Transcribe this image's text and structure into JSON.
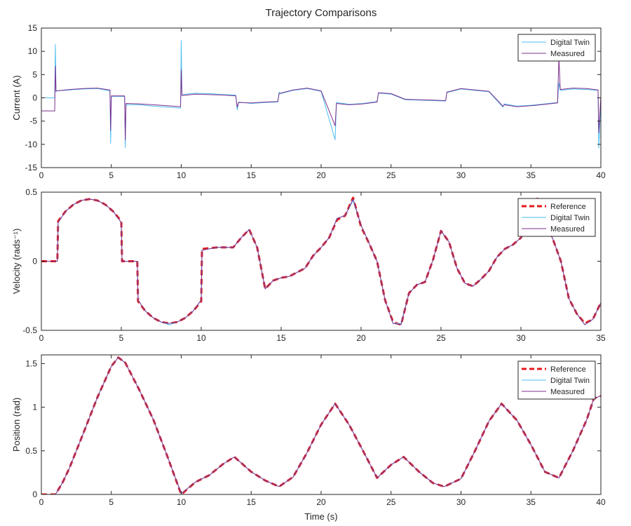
{
  "figure": {
    "title": "Trajectory Comparisons",
    "colors": {
      "reference": "#e41a1c",
      "digital_twin": "#4dbeee",
      "measured": "#7e2f8e",
      "axis": "#262626",
      "background": "#ffffff"
    }
  },
  "chart_data": [
    {
      "type": "line",
      "ylabel": "Current (A)",
      "xlabel": "",
      "xlim": [
        0,
        40
      ],
      "ylim": [
        -15,
        15
      ],
      "xticks": [
        0,
        5,
        10,
        15,
        20,
        25,
        30,
        35,
        40
      ],
      "yticks": [
        -15,
        -10,
        -5,
        0,
        5,
        10,
        15
      ],
      "legend": {
        "position": "top-right",
        "entries": [
          "Digital Twin",
          "Measured"
        ]
      },
      "series": [
        {
          "name": "Digital Twin",
          "color": "#4dbeee",
          "x": [
            0,
            0.95,
            1.0,
            1.05,
            1.1,
            2,
            3,
            4,
            4.9,
            4.95,
            5.0,
            5.05,
            5.5,
            5.95,
            6.0,
            6.05,
            7,
            8,
            9,
            9.95,
            10.0,
            10.05,
            11,
            12,
            13,
            13.9,
            14.0,
            14.1,
            15,
            16,
            16.9,
            17.0,
            17.1,
            18,
            19,
            20,
            21.0,
            21.1,
            22,
            23,
            24,
            24.1,
            25,
            26,
            27,
            28,
            28.9,
            29.0,
            29.1,
            30,
            31,
            32,
            33,
            33.1,
            34,
            35,
            36,
            36.9,
            37.0,
            37.1,
            38,
            39,
            39.8,
            39.85,
            40
          ],
          "y": [
            0,
            0,
            11.5,
            1.3,
            1.5,
            1.7,
            1.9,
            2.0,
            1.5,
            -9.8,
            0.3,
            0.3,
            0.3,
            0.3,
            -10.7,
            -1.5,
            -1.5,
            -1.8,
            -2.0,
            -2.2,
            12.3,
            0.7,
            1.0,
            0.9,
            0.7,
            0.6,
            -2.6,
            -0.9,
            -1.2,
            -1.0,
            -0.9,
            1.2,
            0.9,
            1.6,
            2.0,
            1.4,
            -9.0,
            -1.0,
            -1.4,
            -1.2,
            -0.8,
            1.0,
            0.8,
            -0.4,
            -0.5,
            -0.6,
            -0.7,
            1.3,
            1.2,
            1.9,
            1.6,
            1.3,
            -2.0,
            -1.3,
            -1.8,
            -1.6,
            -1.3,
            -1.0,
            3.2,
            1.6,
            1.9,
            1.8,
            1.6,
            -10.8,
            -0.4
          ]
        },
        {
          "name": "Measured",
          "color": "#7e2f8e",
          "x": [
            0,
            0.95,
            1.0,
            1.05,
            1.1,
            2,
            3,
            4,
            4.9,
            4.95,
            5.0,
            5.05,
            5.5,
            5.95,
            6.0,
            6.05,
            7,
            8,
            9,
            9.95,
            10.0,
            10.05,
            11,
            12,
            13,
            13.9,
            14.0,
            14.1,
            15,
            16,
            16.9,
            17.0,
            17.1,
            18,
            19,
            20,
            21.0,
            21.1,
            22,
            23,
            24,
            24.1,
            25,
            26,
            27,
            28,
            28.9,
            29.0,
            29.1,
            30,
            31,
            32,
            33,
            33.1,
            34,
            35,
            36,
            36.9,
            37.0,
            37.1,
            38,
            39,
            39.8,
            39.85,
            40
          ],
          "y": [
            -2.8,
            -2.8,
            6.8,
            1.5,
            1.5,
            1.8,
            2.0,
            2.1,
            1.7,
            -7.0,
            0.4,
            0.4,
            0.4,
            0.4,
            -9.0,
            -1.2,
            -1.3,
            -1.5,
            -1.7,
            -1.9,
            6.0,
            0.5,
            0.8,
            0.7,
            0.6,
            0.4,
            -2.0,
            -1.0,
            -1.1,
            -0.9,
            -0.8,
            0.9,
            1.0,
            1.7,
            2.1,
            1.5,
            -6.0,
            -1.2,
            -1.5,
            -1.3,
            -0.9,
            1.1,
            0.9,
            -0.3,
            -0.4,
            -0.5,
            -0.6,
            1.2,
            1.3,
            2.0,
            1.7,
            1.4,
            -1.8,
            -1.5,
            -1.9,
            -1.7,
            -1.4,
            -1.1,
            8.6,
            1.8,
            2.1,
            2.0,
            1.7,
            -7.5,
            0.4
          ]
        }
      ]
    },
    {
      "type": "line",
      "ylabel": "Velocity (rads⁻¹)",
      "xlabel": "",
      "xlim": [
        0,
        35
      ],
      "ylim": [
        -0.5,
        0.5
      ],
      "xticks": [
        0,
        5,
        10,
        15,
        20,
        25,
        30,
        35
      ],
      "yticks": [
        -0.5,
        0,
        0.5
      ],
      "legend": {
        "position": "top-right",
        "entries": [
          "Reference",
          "Digital Twin",
          "Measured"
        ]
      },
      "series": [
        {
          "name": "Reference",
          "color": "#e41a1c",
          "style": "dashed",
          "x": [
            0,
            1.0,
            1.05,
            1.5,
            2,
            2.5,
            3,
            3.5,
            4,
            4.5,
            5.0,
            5.05,
            6.0,
            6.05,
            6.5,
            7,
            7.5,
            8,
            8.5,
            9,
            9.5,
            10.0,
            10.05,
            11,
            12,
            12.5,
            13,
            13.5,
            14,
            14.5,
            15,
            15.5,
            16,
            16.5,
            17,
            17.5,
            18,
            18.5,
            19,
            19.5,
            20,
            20.5,
            21,
            21.5,
            22,
            22.5,
            23,
            23.5,
            24,
            24.5,
            25,
            25.5,
            26,
            26.5,
            27,
            27.5,
            28,
            28.5,
            29,
            29.5,
            30,
            30.5,
            31,
            31.5,
            32,
            32.5,
            33,
            33.5,
            34,
            34.5,
            35
          ],
          "y": [
            0,
            0,
            0.29,
            0.36,
            0.41,
            0.44,
            0.45,
            0.44,
            0.41,
            0.36,
            0.29,
            0,
            0,
            -0.29,
            -0.36,
            -0.41,
            -0.44,
            -0.45,
            -0.44,
            -0.41,
            -0.36,
            -0.29,
            0.09,
            0.1,
            0.1,
            0.17,
            0.23,
            0.1,
            -0.2,
            -0.14,
            -0.12,
            -0.11,
            -0.08,
            -0.05,
            0.04,
            0.1,
            0.17,
            0.3,
            0.33,
            0.46,
            0.25,
            0.13,
            0.0,
            -0.28,
            -0.44,
            -0.46,
            -0.23,
            -0.17,
            -0.15,
            0.01,
            0.22,
            0.14,
            -0.05,
            -0.16,
            -0.18,
            -0.13,
            -0.07,
            0.03,
            0.09,
            0.12,
            0.17,
            0.3,
            0.46,
            0.3,
            0.16,
            0.0,
            -0.27,
            -0.38,
            -0.45,
            -0.42,
            -0.3
          ]
        },
        {
          "name": "Digital Twin",
          "color": "#4dbeee",
          "x": [
            0,
            1.0,
            1.05,
            1.5,
            2,
            2.5,
            3,
            3.5,
            4,
            4.5,
            5.0,
            5.05,
            6.0,
            6.05,
            6.5,
            7,
            7.5,
            8,
            8.5,
            9,
            9.5,
            10.0,
            10.05,
            11,
            12,
            12.5,
            13,
            13.5,
            14,
            14.5,
            15,
            15.5,
            16,
            16.5,
            17,
            17.5,
            18,
            18.5,
            19,
            19.5,
            20,
            20.5,
            21,
            21.5,
            22,
            22.5,
            23,
            23.5,
            24,
            24.5,
            25,
            25.5,
            26,
            26.5,
            27,
            27.5,
            28,
            28.5,
            29,
            29.5,
            30,
            30.5,
            31,
            31.5,
            32,
            32.5,
            33,
            33.5,
            34,
            34.5,
            35
          ],
          "y": [
            0,
            0,
            0.28,
            0.36,
            0.41,
            0.44,
            0.45,
            0.44,
            0.41,
            0.36,
            0.28,
            0,
            0,
            -0.28,
            -0.36,
            -0.41,
            -0.44,
            -0.46,
            -0.44,
            -0.41,
            -0.36,
            -0.28,
            0.08,
            0.1,
            0.1,
            0.17,
            0.23,
            0.1,
            -0.2,
            -0.14,
            -0.12,
            -0.11,
            -0.08,
            -0.05,
            0.04,
            0.1,
            0.17,
            0.31,
            0.33,
            0.44,
            0.26,
            0.13,
            0.0,
            -0.28,
            -0.45,
            -0.45,
            -0.23,
            -0.17,
            -0.15,
            0.01,
            0.22,
            0.14,
            -0.05,
            -0.16,
            -0.18,
            -0.13,
            -0.07,
            0.03,
            0.09,
            0.12,
            0.17,
            0.3,
            0.44,
            0.3,
            0.16,
            0.0,
            -0.27,
            -0.38,
            -0.46,
            -0.42,
            -0.3
          ]
        },
        {
          "name": "Measured",
          "color": "#7e2f8e",
          "x": [
            0,
            1.0,
            1.05,
            1.5,
            2,
            2.5,
            3,
            3.5,
            4,
            4.5,
            5.0,
            5.05,
            6.0,
            6.05,
            6.5,
            7,
            7.5,
            8,
            8.5,
            9,
            9.5,
            10.0,
            10.05,
            11,
            12,
            12.5,
            13,
            13.5,
            14,
            14.5,
            15,
            15.5,
            16,
            16.5,
            17,
            17.5,
            18,
            18.5,
            19,
            19.5,
            20,
            20.5,
            21,
            21.5,
            22,
            22.5,
            23,
            23.5,
            24,
            24.5,
            25,
            25.5,
            26,
            26.5,
            27,
            27.5,
            28,
            28.5,
            29,
            29.5,
            30,
            30.5,
            31,
            31.5,
            32,
            32.5,
            33,
            33.5,
            34,
            34.5,
            35
          ],
          "y": [
            0,
            0,
            0.28,
            0.36,
            0.41,
            0.44,
            0.45,
            0.44,
            0.41,
            0.36,
            0.28,
            0,
            0,
            -0.28,
            -0.36,
            -0.41,
            -0.44,
            -0.45,
            -0.44,
            -0.41,
            -0.36,
            -0.28,
            0.08,
            0.1,
            0.1,
            0.17,
            0.23,
            0.1,
            -0.2,
            -0.14,
            -0.12,
            -0.11,
            -0.08,
            -0.05,
            0.04,
            0.1,
            0.17,
            0.31,
            0.33,
            0.45,
            0.26,
            0.13,
            0.0,
            -0.28,
            -0.45,
            -0.46,
            -0.23,
            -0.17,
            -0.15,
            0.01,
            0.22,
            0.14,
            -0.05,
            -0.16,
            -0.18,
            -0.13,
            -0.07,
            0.03,
            0.09,
            0.12,
            0.17,
            0.3,
            0.45,
            0.3,
            0.16,
            0.0,
            -0.27,
            -0.38,
            -0.46,
            -0.42,
            -0.3
          ]
        }
      ]
    },
    {
      "type": "line",
      "ylabel": "Position (rad)",
      "xlabel": "Time (s)",
      "xlim": [
        0,
        40
      ],
      "ylim": [
        0,
        1.6
      ],
      "xticks": [
        0,
        5,
        10,
        15,
        20,
        25,
        30,
        35,
        40
      ],
      "yticks": [
        0,
        0.5,
        1,
        1.5
      ],
      "legend": {
        "position": "top-right",
        "entries": [
          "Reference",
          "Digital Twin",
          "Measured"
        ]
      },
      "series": [
        {
          "name": "Reference",
          "color": "#e41a1c",
          "style": "dashed",
          "x": [
            0,
            1,
            1.5,
            2,
            3,
            4,
            5,
            5.5,
            6,
            7,
            8,
            9,
            10,
            11,
            12,
            13,
            13.8,
            15,
            16,
            17,
            18,
            19,
            20,
            21,
            22,
            23,
            24,
            25,
            25.9,
            27,
            28,
            28.8,
            30,
            31,
            32,
            32.9,
            34,
            35,
            36,
            37,
            38,
            39,
            39.5,
            40
          ],
          "y": [
            0,
            0,
            0.13,
            0.3,
            0.7,
            1.11,
            1.47,
            1.57,
            1.51,
            1.2,
            0.86,
            0.44,
            0,
            0.14,
            0.22,
            0.35,
            0.43,
            0.26,
            0.16,
            0.09,
            0.2,
            0.48,
            0.8,
            1.04,
            0.8,
            0.5,
            0.19,
            0.34,
            0.43,
            0.26,
            0.13,
            0.09,
            0.18,
            0.5,
            0.84,
            1.04,
            0.85,
            0.57,
            0.26,
            0.19,
            0.5,
            0.86,
            1.1,
            1.13
          ]
        },
        {
          "name": "Digital Twin",
          "color": "#4dbeee",
          "x": [
            0,
            1,
            1.5,
            2,
            3,
            4,
            5,
            5.5,
            6,
            7,
            8,
            9,
            10,
            11,
            12,
            13,
            13.8,
            15,
            16,
            17,
            18,
            19,
            20,
            21,
            22,
            23,
            24,
            25,
            25.9,
            27,
            28,
            28.8,
            30,
            31,
            32,
            32.9,
            34,
            35,
            36,
            37,
            38,
            39,
            39.5,
            40
          ],
          "y": [
            0,
            0,
            0.13,
            0.3,
            0.7,
            1.11,
            1.47,
            1.57,
            1.51,
            1.2,
            0.86,
            0.44,
            0.01,
            0.14,
            0.22,
            0.35,
            0.43,
            0.26,
            0.16,
            0.09,
            0.2,
            0.48,
            0.8,
            1.04,
            0.8,
            0.5,
            0.19,
            0.34,
            0.43,
            0.26,
            0.13,
            0.09,
            0.18,
            0.5,
            0.84,
            1.04,
            0.85,
            0.57,
            0.26,
            0.19,
            0.5,
            0.86,
            1.1,
            1.13
          ]
        },
        {
          "name": "Measured",
          "color": "#7e2f8e",
          "x": [
            0,
            1,
            1.5,
            2,
            3,
            4,
            5,
            5.5,
            6,
            7,
            8,
            9,
            10,
            11,
            12,
            13,
            13.8,
            15,
            16,
            17,
            18,
            19,
            20,
            21,
            22,
            23,
            24,
            25,
            25.9,
            27,
            28,
            28.8,
            30,
            31,
            32,
            32.9,
            34,
            35,
            36,
            37,
            38,
            39,
            39.5,
            40
          ],
          "y": [
            0,
            0,
            0.13,
            0.3,
            0.7,
            1.11,
            1.47,
            1.57,
            1.51,
            1.2,
            0.86,
            0.44,
            0.01,
            0.14,
            0.22,
            0.35,
            0.43,
            0.26,
            0.16,
            0.09,
            0.2,
            0.48,
            0.8,
            1.04,
            0.8,
            0.5,
            0.19,
            0.34,
            0.43,
            0.26,
            0.13,
            0.09,
            0.18,
            0.5,
            0.84,
            1.04,
            0.85,
            0.57,
            0.26,
            0.19,
            0.5,
            0.86,
            1.1,
            1.13
          ]
        }
      ]
    }
  ]
}
